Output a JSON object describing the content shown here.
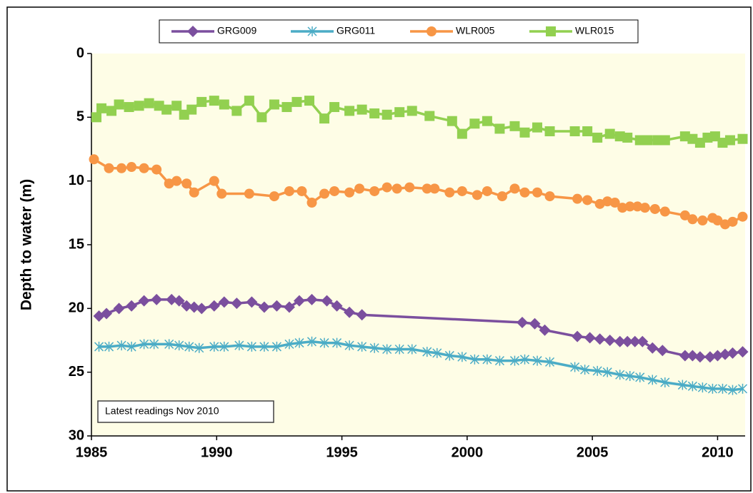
{
  "chart_data": {
    "type": "line",
    "y_axis_label": "Depth to water  (m)",
    "annotation": "Latest readings  Nov 2010",
    "xlim": [
      1985,
      2011.1
    ],
    "xticks": [
      1985,
      1990,
      1995,
      2000,
      2005,
      2010
    ],
    "ylim": [
      0,
      30
    ],
    "y_reversed": true,
    "yticks": [
      0,
      5,
      10,
      15,
      20,
      25,
      30
    ],
    "grid": false,
    "legend": "top",
    "series": [
      {
        "name": "GRG009",
        "color": "#7b4f9e",
        "marker": "diamond",
        "x": [
          1985.3,
          1985.6,
          1986.1,
          1986.6,
          1987.1,
          1987.6,
          1988.2,
          1988.5,
          1988.8,
          1989.1,
          1989.4,
          1989.9,
          1990.3,
          1990.8,
          1991.4,
          1991.9,
          1992.4,
          1992.9,
          1993.3,
          1993.8,
          1994.4,
          1994.8,
          1995.3,
          1995.8,
          2002.2,
          2002.7,
          2003.1,
          2004.4,
          2004.9,
          2005.3,
          2005.7,
          2006.1,
          2006.4,
          2006.7,
          2007.0,
          2007.4,
          2007.8,
          2008.7,
          2009.0,
          2009.3,
          2009.7,
          2010.0,
          2010.3,
          2010.6,
          2011.0
        ],
        "values": [
          20.6,
          20.4,
          20.0,
          19.8,
          19.4,
          19.3,
          19.3,
          19.4,
          19.8,
          19.9,
          20.0,
          19.8,
          19.5,
          19.6,
          19.5,
          19.9,
          19.8,
          19.9,
          19.4,
          19.3,
          19.4,
          19.8,
          20.3,
          20.5,
          21.1,
          21.2,
          21.7,
          22.2,
          22.3,
          22.4,
          22.5,
          22.6,
          22.6,
          22.6,
          22.6,
          23.1,
          23.3,
          23.7,
          23.7,
          23.8,
          23.8,
          23.7,
          23.6,
          23.5,
          23.4
        ]
      },
      {
        "name": "GRG011",
        "color": "#4bacc6",
        "marker": "star",
        "x": [
          1985.3,
          1985.7,
          1986.2,
          1986.6,
          1987.1,
          1987.5,
          1988.1,
          1988.5,
          1988.9,
          1989.3,
          1989.9,
          1990.3,
          1990.9,
          1991.4,
          1991.9,
          1992.4,
          1992.9,
          1993.3,
          1993.8,
          1994.3,
          1994.8,
          1995.3,
          1995.8,
          1996.3,
          1996.8,
          1997.3,
          1997.8,
          1998.4,
          1998.8,
          1999.3,
          1999.8,
          2000.3,
          2000.8,
          2001.3,
          2001.9,
          2002.3,
          2002.8,
          2003.3,
          2004.3,
          2004.7,
          2005.2,
          2005.6,
          2006.1,
          2006.5,
          2006.9,
          2007.4,
          2007.9,
          2008.6,
          2009.0,
          2009.4,
          2009.8,
          2010.2,
          2010.6,
          2011.0
        ],
        "values": [
          23.0,
          23.0,
          22.9,
          23.0,
          22.8,
          22.8,
          22.8,
          22.9,
          23.0,
          23.1,
          23.0,
          23.0,
          22.9,
          23.0,
          23.0,
          23.0,
          22.8,
          22.7,
          22.6,
          22.7,
          22.7,
          22.9,
          23.0,
          23.1,
          23.2,
          23.2,
          23.2,
          23.4,
          23.5,
          23.7,
          23.8,
          24.0,
          24.0,
          24.1,
          24.1,
          24.0,
          24.1,
          24.2,
          24.6,
          24.8,
          24.9,
          25.0,
          25.2,
          25.3,
          25.4,
          25.6,
          25.8,
          26.0,
          26.1,
          26.2,
          26.3,
          26.3,
          26.4,
          26.3
        ]
      },
      {
        "name": "WLR005",
        "color": "#f79646",
        "marker": "circle",
        "x": [
          1985.1,
          1985.7,
          1986.2,
          1986.6,
          1987.1,
          1987.6,
          1988.1,
          1988.4,
          1988.8,
          1989.1,
          1989.9,
          1990.2,
          1991.3,
          1992.3,
          1992.9,
          1993.4,
          1993.8,
          1994.3,
          1994.7,
          1995.3,
          1995.7,
          1996.3,
          1996.8,
          1997.2,
          1997.7,
          1998.4,
          1998.7,
          1999.3,
          1999.8,
          2000.4,
          2000.8,
          2001.4,
          2001.9,
          2002.3,
          2002.8,
          2003.3,
          2004.4,
          2004.8,
          2005.3,
          2005.6,
          2005.9,
          2006.2,
          2006.5,
          2006.8,
          2007.1,
          2007.5,
          2007.9,
          2008.7,
          2009.0,
          2009.4,
          2009.8,
          2010.0,
          2010.3,
          2010.6,
          2011.0
        ],
        "values": [
          8.3,
          9.0,
          9.0,
          8.9,
          9.0,
          9.1,
          10.2,
          10.0,
          10.2,
          10.9,
          10.0,
          11.0,
          11.0,
          11.2,
          10.8,
          10.8,
          11.7,
          11.0,
          10.8,
          10.9,
          10.6,
          10.8,
          10.5,
          10.6,
          10.5,
          10.6,
          10.6,
          10.9,
          10.8,
          11.1,
          10.8,
          11.2,
          10.6,
          10.9,
          10.9,
          11.2,
          11.4,
          11.5,
          11.8,
          11.6,
          11.7,
          12.1,
          12.0,
          12.0,
          12.1,
          12.2,
          12.4,
          12.7,
          13.0,
          13.1,
          12.9,
          13.1,
          13.4,
          13.2,
          12.8
        ]
      },
      {
        "name": "WLR015",
        "color": "#92d050",
        "marker": "square",
        "x": [
          1985.2,
          1985.4,
          1985.8,
          1986.1,
          1986.5,
          1986.9,
          1987.3,
          1987.7,
          1988.0,
          1988.4,
          1988.7,
          1989.0,
          1989.4,
          1989.9,
          1990.3,
          1990.8,
          1991.3,
          1991.8,
          1992.3,
          1992.8,
          1993.2,
          1993.7,
          1994.3,
          1994.7,
          1995.3,
          1995.8,
          1996.3,
          1996.8,
          1997.3,
          1997.8,
          1998.5,
          1999.4,
          1999.8,
          2000.3,
          2000.8,
          2001.3,
          2001.9,
          2002.3,
          2002.8,
          2003.3,
          2004.3,
          2004.8,
          2005.2,
          2005.7,
          2006.1,
          2006.4,
          2006.9,
          2007.2,
          2007.6,
          2007.9,
          2008.7,
          2009.0,
          2009.3,
          2009.6,
          2009.9,
          2010.2,
          2010.5,
          2011.0
        ],
        "values": [
          5.0,
          4.3,
          4.5,
          4.0,
          4.2,
          4.1,
          3.9,
          4.1,
          4.4,
          4.1,
          4.8,
          4.4,
          3.8,
          3.7,
          4.0,
          4.5,
          3.7,
          5.0,
          4.0,
          4.2,
          3.8,
          3.7,
          5.1,
          4.2,
          4.5,
          4.4,
          4.7,
          4.8,
          4.6,
          4.5,
          4.9,
          5.3,
          6.3,
          5.5,
          5.3,
          5.9,
          5.7,
          6.2,
          5.8,
          6.1,
          6.1,
          6.1,
          6.6,
          6.3,
          6.5,
          6.6,
          6.8,
          6.8,
          6.8,
          6.8,
          6.5,
          6.7,
          7.0,
          6.6,
          6.5,
          7.0,
          6.8,
          6.7
        ]
      }
    ]
  }
}
